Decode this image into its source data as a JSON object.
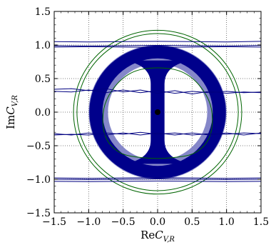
{
  "chart_data": {
    "type": "contour",
    "xlabel_prefix": "Re",
    "ylabel_prefix": "Im",
    "label_symbol": "C",
    "label_subscript": "V,R",
    "xlim": [
      -1.5,
      1.5
    ],
    "ylim": [
      -1.5,
      1.5
    ],
    "x_ticks": [
      -1.5,
      -1.0,
      -0.5,
      0.0,
      0.5,
      1.0,
      1.5
    ],
    "y_ticks": [
      -1.5,
      -1.0,
      -0.5,
      0.0,
      0.5,
      1.0,
      1.5
    ],
    "x_tick_labels": [
      "−1.5",
      "−1.0",
      "−0.5",
      "0.0",
      "0.5",
      "1.0",
      "1.5"
    ],
    "y_tick_labels": [
      "−1.5",
      "−1.0",
      "−0.5",
      "0.0",
      "0.5",
      "1.0",
      "1.5"
    ],
    "grid": true,
    "colors": {
      "region_outer": "#8587c9",
      "region_inner": "#00008b",
      "green_contours": "#006400",
      "blue_lines": "#000080",
      "marker": "#000000"
    },
    "regions": {
      "outer_annulus": {
        "center": [
          0,
          0
        ],
        "r_inner": 0.72,
        "r_outer": 1.0
      },
      "inner_annulus": {
        "center": [
          0,
          0
        ],
        "r_inner": 0.8,
        "r_outer": 0.99
      },
      "stem_half_width": 0.1,
      "stem_flare_half_width": 0.36
    },
    "green_circles": [
      {
        "center": [
          0,
          0
        ],
        "r": 1.17
      },
      {
        "center": [
          0,
          0
        ],
        "r": 1.22
      }
    ],
    "green_inner_loop": {
      "points": [
        [
          0,
          0.66
        ],
        [
          0.35,
          0.6
        ],
        [
          0.62,
          0.38
        ],
        [
          0.78,
          0.05
        ],
        [
          0.76,
          -0.35
        ],
        [
          0.55,
          -0.6
        ],
        [
          0.2,
          -0.68
        ],
        [
          -0.2,
          -0.68
        ],
        [
          -0.55,
          -0.6
        ],
        [
          -0.76,
          -0.35
        ],
        [
          -0.78,
          0.05
        ],
        [
          -0.62,
          0.38
        ],
        [
          -0.35,
          0.6
        ],
        [
          0,
          0.66
        ]
      ]
    },
    "blue_lines": [
      {
        "points": [
          [
            -1.5,
            1.05
          ],
          [
            -1.0,
            1.045
          ],
          [
            -0.5,
            1.05
          ],
          [
            0,
            1.055
          ],
          [
            0.5,
            1.05
          ],
          [
            1.0,
            1.045
          ],
          [
            1.5,
            1.055
          ]
        ]
      },
      {
        "points": [
          [
            -1.5,
            0.99
          ],
          [
            -1.0,
            0.985
          ],
          [
            -0.5,
            0.99
          ],
          [
            0,
            0.995
          ],
          [
            0.5,
            0.99
          ],
          [
            1.0,
            0.985
          ],
          [
            1.5,
            0.995
          ]
        ]
      },
      {
        "points": [
          [
            -1.5,
            0.97
          ],
          [
            -1.0,
            0.975
          ],
          [
            -0.5,
            0.97
          ],
          [
            0,
            0.965
          ],
          [
            0.5,
            0.97
          ],
          [
            1.0,
            0.975
          ],
          [
            1.5,
            0.97
          ]
        ]
      },
      {
        "points": [
          [
            -1.5,
            0.34
          ],
          [
            -1.25,
            0.35
          ],
          [
            -1.0,
            0.32
          ],
          [
            -0.75,
            0.35
          ],
          [
            -0.5,
            0.3
          ],
          [
            -0.25,
            0.33
          ],
          [
            0,
            0.28
          ],
          [
            0.25,
            0.32
          ],
          [
            0.5,
            0.27
          ],
          [
            0.75,
            0.31
          ],
          [
            1.0,
            0.28
          ],
          [
            1.25,
            0.3
          ],
          [
            1.5,
            0.29
          ]
        ]
      },
      {
        "points": [
          [
            -1.5,
            0.31
          ],
          [
            -1.25,
            0.3
          ],
          [
            -1.0,
            0.33
          ],
          [
            -0.75,
            0.29
          ],
          [
            -0.5,
            0.33
          ],
          [
            -0.25,
            0.29
          ],
          [
            0,
            0.32
          ],
          [
            0.25,
            0.28
          ],
          [
            0.5,
            0.31
          ],
          [
            0.75,
            0.29
          ],
          [
            1.0,
            0.31
          ],
          [
            1.25,
            0.29
          ],
          [
            1.5,
            0.3
          ]
        ]
      },
      {
        "points": [
          [
            -1.5,
            -0.34
          ],
          [
            -1.25,
            -0.33
          ],
          [
            -1.0,
            -0.34
          ],
          [
            -0.75,
            -0.31
          ],
          [
            -0.5,
            -0.33
          ],
          [
            -0.25,
            -0.3
          ],
          [
            0,
            -0.33
          ],
          [
            0.25,
            -0.31
          ],
          [
            0.5,
            -0.34
          ],
          [
            0.75,
            -0.32
          ],
          [
            1.0,
            -0.33
          ],
          [
            1.25,
            -0.31
          ],
          [
            1.5,
            -0.32
          ]
        ]
      },
      {
        "points": [
          [
            -1.5,
            -0.32
          ],
          [
            -1.25,
            -0.34
          ],
          [
            -1.0,
            -0.31
          ],
          [
            -0.75,
            -0.34
          ],
          [
            -0.5,
            -0.31
          ],
          [
            -0.25,
            -0.34
          ],
          [
            0,
            -0.31
          ],
          [
            0.25,
            -0.34
          ],
          [
            0.5,
            -0.31
          ],
          [
            0.75,
            -0.34
          ],
          [
            1.0,
            -0.31
          ],
          [
            1.25,
            -0.34
          ],
          [
            1.5,
            -0.31
          ]
        ]
      },
      {
        "points": [
          [
            -1.5,
            -0.98
          ],
          [
            -1.0,
            -0.985
          ],
          [
            -0.5,
            -0.98
          ],
          [
            0,
            -0.975
          ],
          [
            0.5,
            -0.98
          ],
          [
            1.0,
            -0.985
          ],
          [
            1.5,
            -0.98
          ]
        ]
      },
      {
        "points": [
          [
            -1.5,
            -1.0
          ],
          [
            -1.0,
            -1.005
          ],
          [
            -0.5,
            -1.0
          ],
          [
            0,
            -0.995
          ],
          [
            0.5,
            -1.0
          ],
          [
            1.0,
            -1.005
          ],
          [
            1.5,
            -1.0
          ]
        ]
      },
      {
        "points": [
          [
            -1.5,
            -1.03
          ],
          [
            -1.0,
            -1.035
          ],
          [
            -0.5,
            -1.03
          ],
          [
            0,
            -1.025
          ],
          [
            0.5,
            -1.03
          ],
          [
            1.0,
            -1.035
          ],
          [
            1.5,
            -1.03
          ]
        ]
      }
    ],
    "marker": {
      "x": 0.0,
      "y": 0.0
    }
  }
}
